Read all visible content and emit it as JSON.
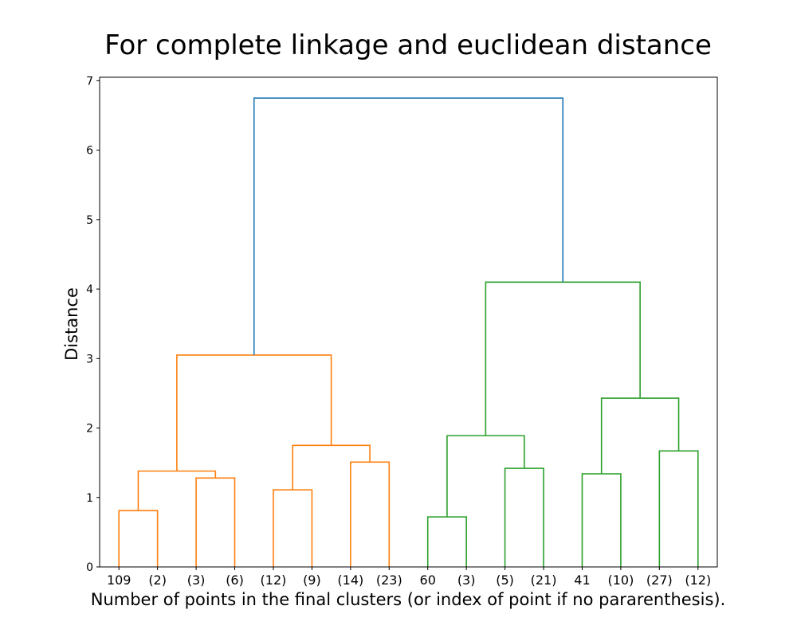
{
  "chart_data": {
    "type": "dendrogram",
    "title": "For complete linkage and euclidean distance",
    "xlabel": "Number of points in the final clusters (or index of point if no pararenthesis).",
    "ylabel": "Distance",
    "ylim": [
      0,
      7.05
    ],
    "yticks": [
      0,
      1,
      2,
      3,
      4,
      5,
      6,
      7
    ],
    "leaves": [
      "109",
      "(2)",
      "(3)",
      "(6)",
      "(12)",
      "(9)",
      "(14)",
      "(23)",
      "60",
      "(3)",
      "(5)",
      "(21)",
      "41",
      "(10)",
      "(27)",
      "(12)"
    ],
    "colors": {
      "orange": "#ff7f0e",
      "green": "#2ca02c",
      "blue": "#1f77b4"
    },
    "links": [
      {
        "left_leaf": 0,
        "right_leaf": 1,
        "left_height": 0,
        "right_height": 0,
        "height": 0.81,
        "color": "orange"
      },
      {
        "left_leaf": 2,
        "right_leaf": 3,
        "left_height": 0,
        "right_height": 0,
        "height": 1.28,
        "color": "orange"
      },
      {
        "left_leaf": 0.5,
        "right_leaf": 2.5,
        "left_height": 0.81,
        "right_height": 1.28,
        "height": 1.38,
        "color": "orange"
      },
      {
        "left_leaf": 4,
        "right_leaf": 5,
        "left_height": 0,
        "right_height": 0,
        "height": 1.11,
        "color": "orange"
      },
      {
        "left_leaf": 6,
        "right_leaf": 7,
        "left_height": 0,
        "right_height": 0,
        "height": 1.51,
        "color": "orange"
      },
      {
        "left_leaf": 4.5,
        "right_leaf": 6.5,
        "left_height": 1.11,
        "right_height": 1.51,
        "height": 1.75,
        "color": "orange"
      },
      {
        "left_leaf": 1.5,
        "right_leaf": 5.5,
        "left_height": 1.38,
        "right_height": 1.75,
        "height": 3.05,
        "color": "orange"
      },
      {
        "left_leaf": 8,
        "right_leaf": 9,
        "left_height": 0,
        "right_height": 0,
        "height": 0.72,
        "color": "green"
      },
      {
        "left_leaf": 10,
        "right_leaf": 11,
        "left_height": 0,
        "right_height": 0,
        "height": 1.42,
        "color": "green"
      },
      {
        "left_leaf": 8.5,
        "right_leaf": 10.5,
        "left_height": 0.72,
        "right_height": 1.42,
        "height": 1.89,
        "color": "green"
      },
      {
        "left_leaf": 12,
        "right_leaf": 13,
        "left_height": 0,
        "right_height": 0,
        "height": 1.34,
        "color": "green"
      },
      {
        "left_leaf": 14,
        "right_leaf": 15,
        "left_height": 0,
        "right_height": 0,
        "height": 1.67,
        "color": "green"
      },
      {
        "left_leaf": 12.5,
        "right_leaf": 14.5,
        "left_height": 1.34,
        "right_height": 1.67,
        "height": 2.43,
        "color": "green"
      },
      {
        "left_leaf": 9.5,
        "right_leaf": 13.5,
        "left_height": 1.89,
        "right_height": 2.43,
        "height": 4.1,
        "color": "green"
      },
      {
        "left_leaf": 3.5,
        "right_leaf": 11.5,
        "left_height": 3.05,
        "right_height": 4.1,
        "height": 6.75,
        "color": "blue"
      }
    ]
  }
}
